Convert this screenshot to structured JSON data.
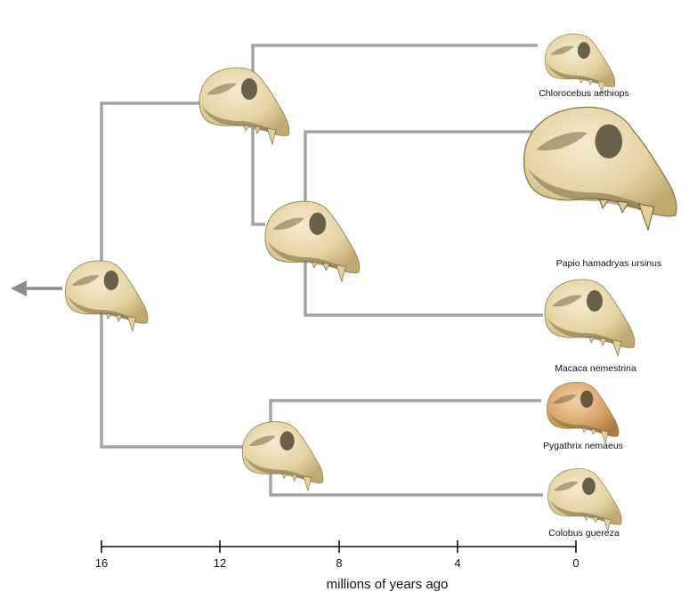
{
  "diagram": {
    "type": "phylogenetic-tree",
    "colors": {
      "branch": "#a3a3a3",
      "arrow": "#8c8c8c",
      "axis": "#111111",
      "skull": "#e4d4a2",
      "skull_colobine": "#d9a46a"
    },
    "taxa": [
      {
        "id": "chlorocebus",
        "label": "Chlorocebus aethiops"
      },
      {
        "id": "papio",
        "label": "Papio hamadryas ursinus"
      },
      {
        "id": "macaca",
        "label": "Macaca nemestrina"
      },
      {
        "id": "pygathrix",
        "label": "Pygathrix nemaeus"
      },
      {
        "id": "colobus",
        "label": "Colobus guereza"
      }
    ],
    "axis": {
      "title": "millions of years ago",
      "ticks": [
        "16",
        "12",
        "8",
        "4",
        "0"
      ]
    }
  }
}
